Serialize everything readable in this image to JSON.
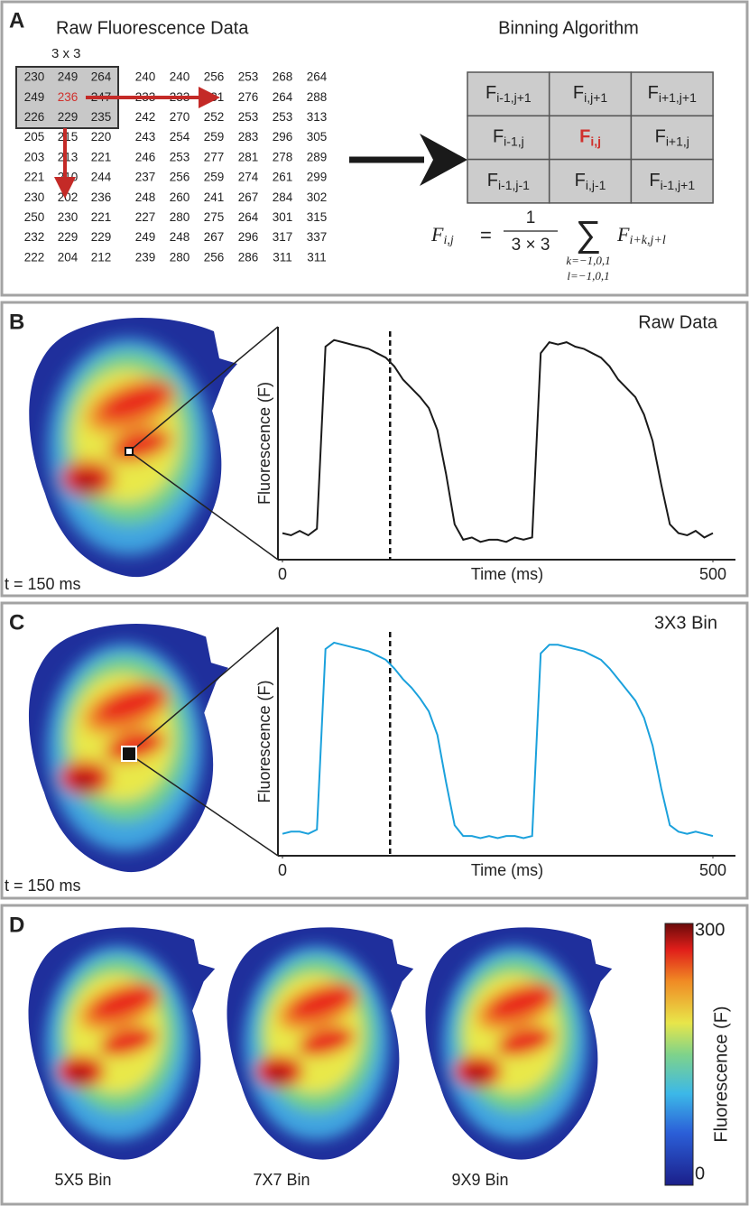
{
  "panel_a": {
    "letter": "A",
    "left_title": "Raw Fluorescence Data",
    "kernel_label": "3 x 3",
    "matrix": [
      [
        230,
        249,
        264,
        240,
        240,
        256,
        253,
        268,
        264
      ],
      [
        249,
        236,
        247,
        233,
        233,
        231,
        276,
        264,
        288
      ],
      [
        226,
        229,
        235,
        242,
        270,
        252,
        253,
        253,
        313
      ],
      [
        205,
        215,
        220,
        243,
        254,
        259,
        283,
        296,
        305
      ],
      [
        203,
        213,
        221,
        246,
        253,
        277,
        281,
        278,
        289
      ],
      [
        221,
        210,
        244,
        237,
        256,
        259,
        274,
        261,
        299
      ],
      [
        230,
        202,
        236,
        248,
        260,
        241,
        267,
        284,
        302
      ],
      [
        250,
        230,
        221,
        227,
        280,
        275,
        264,
        301,
        315
      ],
      [
        232,
        229,
        229,
        249,
        248,
        267,
        296,
        317,
        337
      ],
      [
        222,
        204,
        212,
        239,
        280,
        256,
        286,
        311,
        311
      ]
    ],
    "right_title": "Binning Algorithm",
    "grid": [
      [
        {
          "symbol": "F",
          "subscript": "i-1,j+1"
        },
        {
          "symbol": "F",
          "subscript": "i,j+1"
        },
        {
          "symbol": "F",
          "subscript": "i+1,j+1"
        }
      ],
      [
        {
          "symbol": "F",
          "subscript": "i-1,j"
        },
        {
          "symbol": "F",
          "subscript": "i,j"
        },
        {
          "symbol": "F",
          "subscript": "i+1,j"
        }
      ],
      [
        {
          "symbol": "F",
          "subscript": "i-1,j-1"
        },
        {
          "symbol": "F",
          "subscript": "i,j-1"
        },
        {
          "symbol": "F",
          "subscript": "i-1,j+1"
        }
      ]
    ],
    "formula": {
      "lhs": "F",
      "lhs_sub": "i,j",
      "equals": "=",
      "numerator": "1",
      "denominator": "3 × 3",
      "sum": "∑",
      "limits": [
        "k=−1,0,1",
        "l=−1,0,1"
      ],
      "term": "F",
      "term_sub": "i+k,j+l"
    }
  },
  "panel_b": {
    "letter": "B",
    "image_label": "t = 150 ms"
  },
  "panel_c": {
    "letter": "C",
    "image_label": "t = 150 ms"
  },
  "panel_d": {
    "letter": "D",
    "bin_labels": [
      "5X5 Bin",
      "7X7 Bin",
      "9X9 Bin"
    ],
    "colorbar": {
      "label": "Fluorescence (F)",
      "lim": [
        0,
        300
      ],
      "ticks": [
        0,
        300
      ]
    }
  },
  "chart_data": [
    {
      "type": "line",
      "title": "Raw Data",
      "x_label": "Time (ms)",
      "y_label": "Fluorescence (F)",
      "x": [
        0,
        10,
        20,
        30,
        40,
        50,
        60,
        70,
        80,
        90,
        100,
        110,
        120,
        130,
        140,
        150,
        160,
        170,
        180,
        190,
        200,
        210,
        220,
        230,
        240,
        250,
        260,
        270,
        280,
        290,
        300,
        310,
        320,
        330,
        340,
        350,
        360,
        370,
        380,
        390,
        400,
        410,
        420,
        430,
        440,
        450,
        460,
        470,
        480,
        490,
        500
      ],
      "series": [
        {
          "color": "#1a1a1a",
          "values": [
            0.08,
            0.07,
            0.09,
            0.07,
            0.1,
            0.93,
            0.96,
            0.95,
            0.94,
            0.93,
            0.92,
            0.9,
            0.88,
            0.84,
            0.78,
            0.74,
            0.7,
            0.65,
            0.55,
            0.35,
            0.12,
            0.05,
            0.06,
            0.04,
            0.05,
            0.05,
            0.04,
            0.06,
            0.05,
            0.06,
            0.9,
            0.95,
            0.94,
            0.95,
            0.93,
            0.92,
            0.9,
            0.88,
            0.84,
            0.78,
            0.74,
            0.7,
            0.62,
            0.5,
            0.3,
            0.12,
            0.08,
            0.07,
            0.09,
            0.06,
            0.08
          ]
        }
      ],
      "xlim": [
        0,
        500
      ],
      "xticks": [
        0,
        500
      ],
      "ylim": [
        0,
        1
      ],
      "marker_x": 125
    },
    {
      "type": "line",
      "title": "3X3 Bin",
      "x_label": "Time (ms)",
      "y_label": "Fluorescence (F)",
      "x": [
        0,
        10,
        20,
        30,
        40,
        50,
        60,
        70,
        80,
        90,
        100,
        110,
        120,
        130,
        140,
        150,
        160,
        170,
        180,
        190,
        200,
        210,
        220,
        230,
        240,
        250,
        260,
        270,
        280,
        290,
        300,
        310,
        320,
        330,
        340,
        350,
        360,
        370,
        380,
        390,
        400,
        410,
        420,
        430,
        440,
        450,
        460,
        470,
        480,
        490,
        500
      ],
      "series": [
        {
          "color": "#1ba1dc",
          "values": [
            0.06,
            0.07,
            0.07,
            0.06,
            0.08,
            0.92,
            0.95,
            0.94,
            0.93,
            0.92,
            0.91,
            0.89,
            0.87,
            0.83,
            0.78,
            0.74,
            0.69,
            0.63,
            0.52,
            0.3,
            0.1,
            0.05,
            0.05,
            0.04,
            0.05,
            0.04,
            0.05,
            0.05,
            0.04,
            0.05,
            0.9,
            0.94,
            0.94,
            0.93,
            0.92,
            0.91,
            0.89,
            0.87,
            0.83,
            0.78,
            0.73,
            0.68,
            0.6,
            0.47,
            0.27,
            0.1,
            0.07,
            0.06,
            0.07,
            0.06,
            0.05
          ]
        }
      ],
      "xlim": [
        0,
        500
      ],
      "xticks": [
        0,
        500
      ],
      "ylim": [
        0,
        1
      ],
      "marker_x": 125
    }
  ]
}
